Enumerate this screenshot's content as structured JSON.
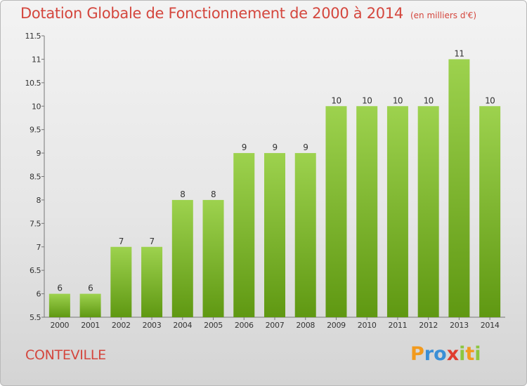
{
  "title": "Dotation Globale de Fonctionnement de 2000 à 2014",
  "unit": "(en milliers d'€)",
  "commune": "CONTEVILLE",
  "logo": {
    "letters": [
      "P",
      "r",
      "o",
      "x",
      "i",
      "t",
      "i"
    ],
    "colors": [
      "#f29a1d",
      "#3a8fd6",
      "#3a8fd6",
      "#e03c2f",
      "#8cc63f",
      "#f29a1d",
      "#8cc63f"
    ]
  },
  "colors": {
    "title": "#d4463d",
    "bar_top": "#9dd24e",
    "bar_bottom": "#5f9812"
  },
  "chart_data": {
    "type": "bar",
    "categories": [
      "2000",
      "2001",
      "2002",
      "2003",
      "2004",
      "2005",
      "2006",
      "2007",
      "2008",
      "2009",
      "2010",
      "2011",
      "2012",
      "2013",
      "2014"
    ],
    "values": [
      6,
      6,
      7,
      7,
      8,
      8,
      9,
      9,
      9,
      10,
      10,
      10,
      10,
      11,
      10
    ],
    "data_labels": [
      "6",
      "6",
      "7",
      "7",
      "8",
      "8",
      "9",
      "9",
      "9",
      "10",
      "10",
      "10",
      "10",
      "11",
      "10"
    ],
    "yticks": [
      "5.5",
      "6",
      "6.5",
      "7",
      "7.5",
      "8",
      "8.5",
      "9",
      "9.5",
      "10",
      "10.5",
      "11",
      "11.5"
    ],
    "ylim": [
      5.5,
      11.5
    ],
    "grid": false
  }
}
